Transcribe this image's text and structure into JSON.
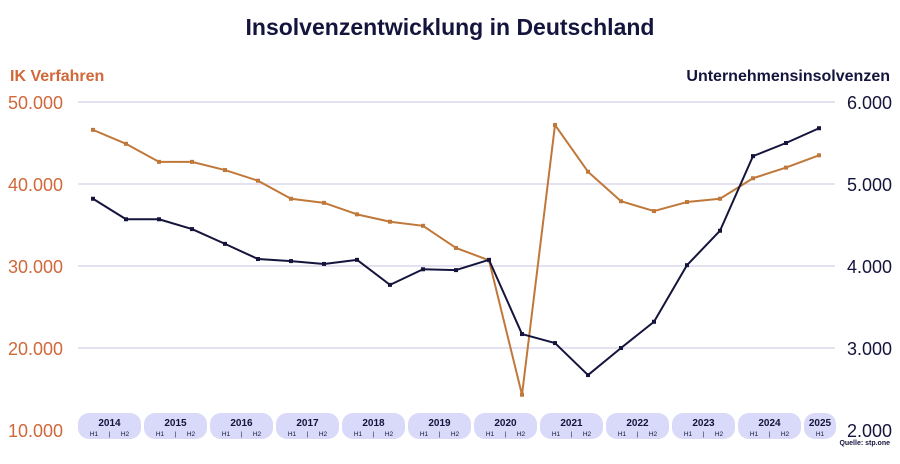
{
  "chart_data": {
    "type": "line",
    "title": "Insolvenzentwicklung in Deutschland",
    "left_axis": {
      "label": "IK Verfahren",
      "ticks": [
        "50.000",
        "40.000",
        "30.000",
        "20.000",
        "10.000"
      ],
      "range": [
        10000,
        50000
      ]
    },
    "right_axis": {
      "label": "Unternehmensinsolvenzen",
      "ticks": [
        "6.000",
        "5.000",
        "4.000",
        "3.000",
        "2.000"
      ],
      "range": [
        2000,
        6000
      ]
    },
    "years": [
      "2014",
      "2015",
      "2016",
      "2017",
      "2018",
      "2019",
      "2020",
      "2021",
      "2022",
      "2023",
      "2024",
      "2025"
    ],
    "halves": [
      "H1",
      "H2"
    ],
    "x": [
      "2014 H1",
      "2014 H2",
      "2015 H1",
      "2015 H2",
      "2016 H1",
      "2016 H2",
      "2017 H1",
      "2017 H2",
      "2018 H1",
      "2018 H2",
      "2019 H1",
      "2019 H2",
      "2020 H1",
      "2020 H2",
      "2021 H1",
      "2021 H2",
      "2022 H1",
      "2022 H2",
      "2023 H1",
      "2023 H2",
      "2024 H1",
      "2024 H2",
      "2025 H1"
    ],
    "series": [
      {
        "axis": "left",
        "color": "#c0783a",
        "values": [
          46600,
          44900,
          42700,
          42700,
          41700,
          40400,
          38200,
          37700,
          36300,
          35400,
          34900,
          32200,
          30700,
          14300,
          47200,
          41500,
          37900,
          36700,
          37800,
          38200,
          40700,
          42000,
          43500
        ]
      },
      {
        "axis": "right",
        "color": "#14143c",
        "values": [
          4820,
          4570,
          4570,
          4450,
          4270,
          4085,
          4060,
          4025,
          4075,
          3770,
          3960,
          3950,
          4075,
          3170,
          3060,
          2670,
          3000,
          3320,
          4010,
          4430,
          5340,
          5500,
          5680
        ]
      }
    ],
    "grid": true,
    "source": "Quelle: stp.one"
  },
  "colors": {
    "left": "#d0683a",
    "right": "#14143c",
    "pill": "#d9d9f9",
    "grid": "#e4e2f0"
  }
}
